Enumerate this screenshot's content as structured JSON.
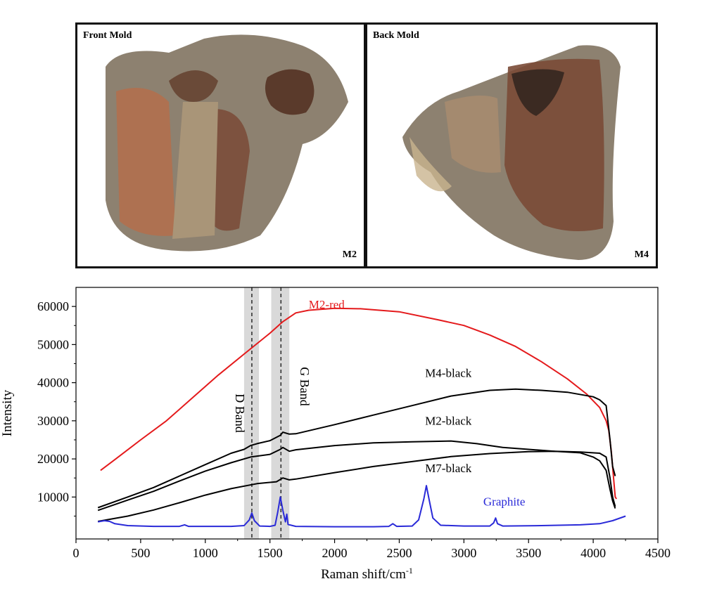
{
  "photos": {
    "front": {
      "label": "Front Mold",
      "id": "M2"
    },
    "back": {
      "label": "Back Mold",
      "id": "M4"
    }
  },
  "colors": {
    "m2_red": "#e41a1c",
    "black_series": "#000000",
    "graphite": "#2a2ad8",
    "band_shade": "#d9d9d9",
    "mold_sand": "#9a8b78",
    "mold_red": "#b06a4a",
    "mold_dark": "#5b3a2a"
  },
  "chart_data": {
    "type": "line",
    "xlabel": "Raman shift/cm",
    "xlabel_sup": "-1",
    "ylabel": "Intensity",
    "xlim": [
      0,
      4500
    ],
    "ylim": [
      -1000,
      65000
    ],
    "xticks": [
      0,
      500,
      1000,
      1500,
      2000,
      2500,
      3000,
      3500,
      4000,
      4500
    ],
    "yticks": [
      10000,
      20000,
      30000,
      40000,
      50000,
      60000
    ],
    "bands": [
      {
        "label": "D Band",
        "center": 1360,
        "from": 1300,
        "to": 1415
      },
      {
        "label": "G Band",
        "center": 1585,
        "from": 1510,
        "to": 1650
      }
    ],
    "series": [
      {
        "name": "M2-red",
        "color": "#e41a1c",
        "label_at": [
          1800,
          59500
        ],
        "points": [
          [
            190,
            17000
          ],
          [
            300,
            19800
          ],
          [
            500,
            25000
          ],
          [
            700,
            30000
          ],
          [
            900,
            36000
          ],
          [
            1100,
            42000
          ],
          [
            1300,
            47500
          ],
          [
            1500,
            53000
          ],
          [
            1600,
            56000
          ],
          [
            1700,
            58300
          ],
          [
            1800,
            59000
          ],
          [
            2000,
            59500
          ],
          [
            2200,
            59400
          ],
          [
            2500,
            58600
          ],
          [
            2800,
            56500
          ],
          [
            3000,
            55000
          ],
          [
            3200,
            52500
          ],
          [
            3400,
            49500
          ],
          [
            3600,
            45500
          ],
          [
            3800,
            41000
          ],
          [
            3950,
            37000
          ],
          [
            4050,
            33500
          ],
          [
            4100,
            30000
          ],
          [
            4120,
            27500
          ],
          [
            4140,
            22000
          ],
          [
            4160,
            14000
          ],
          [
            4170,
            10000
          ],
          [
            4180,
            9500
          ]
        ]
      },
      {
        "name": "M4-black",
        "color": "#000000",
        "label_at": [
          2700,
          41500
        ],
        "points": [
          [
            170,
            7200
          ],
          [
            400,
            10000
          ],
          [
            600,
            12500
          ],
          [
            800,
            15500
          ],
          [
            1000,
            18500
          ],
          [
            1200,
            21500
          ],
          [
            1300,
            22500
          ],
          [
            1350,
            23500
          ],
          [
            1400,
            24000
          ],
          [
            1500,
            24800
          ],
          [
            1580,
            26200
          ],
          [
            1600,
            27000
          ],
          [
            1650,
            26500
          ],
          [
            1700,
            26600
          ],
          [
            2000,
            29000
          ],
          [
            2300,
            31500
          ],
          [
            2600,
            34000
          ],
          [
            2900,
            36500
          ],
          [
            3200,
            38000
          ],
          [
            3400,
            38300
          ],
          [
            3600,
            38000
          ],
          [
            3800,
            37500
          ],
          [
            4000,
            36300
          ],
          [
            4050,
            35500
          ],
          [
            4100,
            34000
          ],
          [
            4130,
            25000
          ],
          [
            4150,
            18000
          ],
          [
            4170,
            15500
          ]
        ]
      },
      {
        "name": "M2-black",
        "color": "#000000",
        "label_at": [
          2700,
          29000
        ],
        "points": [
          [
            170,
            6500
          ],
          [
            400,
            9200
          ],
          [
            600,
            11500
          ],
          [
            800,
            14200
          ],
          [
            1000,
            16800
          ],
          [
            1200,
            19000
          ],
          [
            1350,
            20500
          ],
          [
            1500,
            21200
          ],
          [
            1580,
            22500
          ],
          [
            1600,
            23000
          ],
          [
            1650,
            22000
          ],
          [
            1700,
            22400
          ],
          [
            2000,
            23500
          ],
          [
            2300,
            24200
          ],
          [
            2600,
            24500
          ],
          [
            2900,
            24700
          ],
          [
            3100,
            24000
          ],
          [
            3300,
            23000
          ],
          [
            3500,
            22500
          ],
          [
            3700,
            22000
          ],
          [
            3900,
            21800
          ],
          [
            4050,
            21500
          ],
          [
            4100,
            20500
          ],
          [
            4130,
            15000
          ],
          [
            4150,
            10000
          ],
          [
            4170,
            7500
          ]
        ]
      },
      {
        "name": "M7-black",
        "color": "#000000",
        "label_at": [
          2700,
          16500
        ],
        "points": [
          [
            170,
            3600
          ],
          [
            400,
            5000
          ],
          [
            600,
            6600
          ],
          [
            800,
            8500
          ],
          [
            1000,
            10500
          ],
          [
            1200,
            12200
          ],
          [
            1400,
            13500
          ],
          [
            1550,
            14000
          ],
          [
            1600,
            15000
          ],
          [
            1650,
            14500
          ],
          [
            1700,
            14700
          ],
          [
            2000,
            16400
          ],
          [
            2300,
            18000
          ],
          [
            2600,
            19300
          ],
          [
            2900,
            20600
          ],
          [
            3200,
            21400
          ],
          [
            3500,
            21900
          ],
          [
            3700,
            22000
          ],
          [
            3900,
            21600
          ],
          [
            4000,
            20500
          ],
          [
            4050,
            19500
          ],
          [
            4100,
            17000
          ],
          [
            4130,
            12000
          ],
          [
            4150,
            9000
          ],
          [
            4170,
            7000
          ]
        ]
      },
      {
        "name": "Graphite",
        "color": "#2a2ad8",
        "label_at": [
          3150,
          7800
        ],
        "points": [
          [
            170,
            3500
          ],
          [
            220,
            3800
          ],
          [
            260,
            3600
          ],
          [
            300,
            3000
          ],
          [
            400,
            2500
          ],
          [
            600,
            2300
          ],
          [
            800,
            2300
          ],
          [
            840,
            2700
          ],
          [
            870,
            2300
          ],
          [
            1000,
            2300
          ],
          [
            1200,
            2300
          ],
          [
            1300,
            2500
          ],
          [
            1340,
            4000
          ],
          [
            1360,
            5800
          ],
          [
            1380,
            3800
          ],
          [
            1420,
            2400
          ],
          [
            1500,
            2300
          ],
          [
            1540,
            2600
          ],
          [
            1560,
            6000
          ],
          [
            1580,
            10000
          ],
          [
            1600,
            6500
          ],
          [
            1620,
            3500
          ],
          [
            1630,
            5500
          ],
          [
            1640,
            2800
          ],
          [
            1700,
            2300
          ],
          [
            2000,
            2200
          ],
          [
            2300,
            2200
          ],
          [
            2420,
            2300
          ],
          [
            2450,
            3000
          ],
          [
            2480,
            2300
          ],
          [
            2600,
            2400
          ],
          [
            2650,
            4000
          ],
          [
            2690,
            9500
          ],
          [
            2710,
            13000
          ],
          [
            2730,
            9500
          ],
          [
            2760,
            4500
          ],
          [
            2820,
            2600
          ],
          [
            3000,
            2400
          ],
          [
            3200,
            2400
          ],
          [
            3230,
            3200
          ],
          [
            3245,
            4500
          ],
          [
            3260,
            3000
          ],
          [
            3300,
            2400
          ],
          [
            3600,
            2500
          ],
          [
            3900,
            2700
          ],
          [
            4050,
            3000
          ],
          [
            4150,
            3800
          ],
          [
            4250,
            5000
          ]
        ]
      }
    ]
  }
}
